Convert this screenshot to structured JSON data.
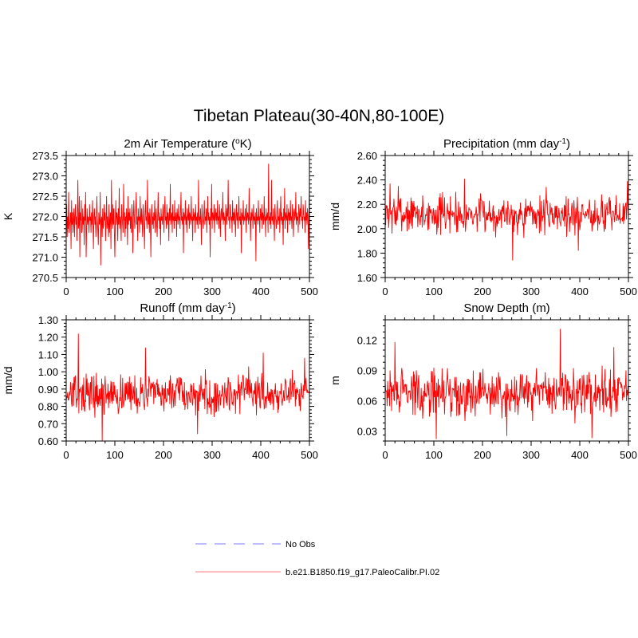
{
  "figure": {
    "title": "Tibetan Plateau(30-40N,80-100E)"
  },
  "legend": [
    {
      "label": "No Obs",
      "color": "#9999ff",
      "dash": true
    },
    {
      "label": "b.e21.B1850.f19_g17.PaleoCalibr.PI.02",
      "color": "#ff9999",
      "dash": false
    }
  ],
  "chart_data": [
    {
      "type": "line",
      "title": "2m Air Temperature (",
      "title_sup": "o",
      "title_tail": "K)",
      "ylabel": "K",
      "xlim": [
        0,
        500
      ],
      "ylim": [
        270.5,
        273.5
      ],
      "xticks": [
        0,
        100,
        200,
        300,
        400,
        500
      ],
      "yticks": [
        270.5,
        271.0,
        271.5,
        272.0,
        272.5,
        273.0,
        273.5
      ],
      "ytick_labels": [
        "270.5",
        "271.0",
        "271.5",
        "272.0",
        "272.5",
        "273.0",
        "273.5"
      ],
      "series_color": "#ff0000",
      "n_points": 501,
      "mean": 271.95,
      "amplitude": 0.35,
      "values": [
        271.9,
        272.3,
        271.5,
        272.0,
        271.7,
        272.6,
        271.6,
        271.8,
        271.9,
        272.1,
        271.2,
        272.4,
        271.8,
        272.1,
        271.6,
        271.9,
        272.2,
        271.5,
        272.0,
        272.3,
        271.8,
        272.0,
        271.4,
        272.0,
        272.9,
        271.7,
        271.8,
        272.5,
        271.0,
        272.1,
        271.9,
        272.4,
        271.6,
        271.7,
        272.2,
        271.8,
        272.0,
        271.3,
        272.3,
        271.9,
        272.6,
        271.0,
        271.7,
        272.2,
        271.8,
        272.0,
        271.9,
        271.6,
        272.3,
        271.9,
        272.0,
        271.6,
        272.1,
        271.8,
        272.4,
        271.9,
        271.2,
        272.0,
        272.2,
        271.8,
        272.0,
        271.5,
        271.9,
        272.5,
        272.0,
        271.7,
        271.3,
        272.1,
        271.8,
        271.9,
        272.6,
        270.8,
        271.9,
        272.0,
        271.5,
        272.2,
        271.7,
        271.8,
        272.3,
        271.9,
        272.1,
        271.4,
        271.9,
        272.5,
        271.7,
        272.0,
        271.8,
        271.5,
        272.3,
        271.6,
        271.9,
        272.1,
        271.2,
        272.9,
        271.9,
        271.7,
        272.3,
        271.8,
        272.2,
        271.6,
        271.0,
        271.9,
        272.4,
        271.8,
        272.1,
        272.0,
        271.4,
        272.2,
        271.8,
        272.7,
        271.7,
        272.0,
        271.9,
        271.4,
        272.3,
        272.0,
        271.8,
        271.6,
        272.8,
        271.9,
        272.1,
        271.5,
        272.0,
        271.7,
        272.2,
        272.0,
        271.3,
        272.5,
        271.8,
        272.1,
        271.9,
        272.2,
        271.7,
        272.0,
        271.6,
        272.3,
        272.1,
        271.1,
        271.9,
        272.4,
        272.0,
        271.7,
        271.9,
        272.1,
        272.6,
        271.8,
        272.0,
        271.4,
        272.2,
        271.9,
        272.0,
        271.6,
        272.5,
        271.9,
        271.8,
        272.2,
        271.9,
        271.5,
        272.3,
        272.0,
        271.8,
        271.2,
        272.1,
        272.4,
        271.9,
        272.0,
        271.7,
        272.9,
        271.9,
        271.8,
        272.1,
        271.6,
        272.2,
        271.9,
        271.0,
        272.0,
        272.3,
        271.8,
        272.0,
        271.7,
        272.1,
        271.9,
        272.4,
        271.6,
        272.0,
        272.2,
        271.8,
        271.5,
        272.0,
        272.6,
        271.9,
        272.1,
        271.7,
        272.0,
        271.3,
        272.2,
        271.9,
        272.0,
        271.8,
        272.3,
        272.0,
        271.6,
        272.1,
        272.5,
        271.9,
        272.0,
        271.7,
        272.3,
        271.8,
        272.1,
        272.0,
        271.4,
        272.2,
        271.9,
        272.8,
        271.8,
        272.0,
        272.1,
        271.6,
        272.3,
        271.9,
        272.0,
        271.7,
        272.4,
        271.9,
        271.9,
        272.1,
        271.5,
        272.2,
        272.0,
        271.8,
        272.3,
        271.9,
        272.0,
        271.7,
        272.1,
        272.6,
        271.9,
        272.0,
        271.8,
        272.2,
        271.1,
        272.1,
        272.0,
        271.9,
        272.4,
        271.8,
        272.0,
        271.6,
        272.2,
        272.0,
        271.9,
        272.3,
        271.7,
        272.1,
        272.0,
        271.8,
        272.5,
        271.9,
        272.0,
        271.4,
        272.2,
        271.9,
        272.0,
        272.1,
        271.6,
        272.3,
        271.9,
        272.0,
        271.8,
        272.1,
        271.7,
        272.9,
        271.9,
        272.0,
        271.8,
        272.2,
        271.9,
        271.3,
        272.3,
        272.0,
        271.9,
        271.7,
        272.1,
        272.4,
        271.8,
        272.0,
        271.9,
        272.2,
        271.6,
        272.0,
        272.5,
        271.9,
        272.1,
        271.8,
        272.0,
        271.0,
        272.2,
        271.9,
        272.8,
        271.7,
        272.1,
        272.0,
        271.9,
        272.3,
        271.6,
        272.0,
        272.2,
        271.9,
        272.1,
        271.8,
        272.4,
        271.9,
        272.0,
        271.7,
        272.3,
        272.0,
        271.5,
        272.1,
        272.2,
        271.9,
        272.0,
        272.6,
        271.8,
        272.1,
        271.9,
        272.0,
        271.4,
        272.3,
        272.1,
        271.8,
        272.2,
        272.0,
        272.9,
        271.9,
        272.0,
        271.7,
        272.3,
        272.1,
        271.9,
        272.0,
        271.6,
        272.4,
        271.9,
        272.1,
        271.8,
        272.2,
        272.0,
        271.5,
        272.0,
        272.3,
        271.9,
        272.1,
        271.7,
        272.0,
        272.5,
        271.9,
        272.0,
        271.8,
        272.2,
        271.1,
        272.1,
        272.0,
        271.9,
        272.4,
        271.8,
        272.0,
        271.9,
        272.2,
        272.0,
        271.6,
        272.3,
        271.9,
        272.1,
        272.0,
        271.8,
        272.7,
        271.9,
        272.0,
        271.4,
        272.1,
        271.9,
        272.2,
        272.0,
        271.7,
        272.3,
        271.9,
        272.0,
        271.8,
        272.1,
        270.9,
        272.2,
        271.9,
        272.0,
        271.8,
        272.4,
        271.9,
        272.0,
        271.6,
        272.2,
        272.0,
        271.9,
        272.3,
        271.7,
        272.1,
        272.0,
        271.8,
        272.5,
        271.9,
        272.0,
        271.5,
        272.2,
        271.9,
        272.0,
        272.1,
        271.6,
        273.3,
        271.9,
        272.0,
        271.8,
        272.1,
        271.7,
        272.9,
        271.9,
        272.0,
        271.8,
        272.2,
        271.9,
        271.4,
        272.3,
        272.0,
        271.9,
        271.7,
        272.1,
        272.4,
        271.8,
        272.0,
        271.9,
        272.2,
        271.6,
        272.0,
        272.5,
        271.9,
        272.1,
        271.8,
        272.0,
        271.3,
        272.2,
        271.9,
        272.7,
        271.7,
        272.1,
        272.0,
        271.9,
        272.3,
        271.6,
        272.0,
        272.2,
        271.9,
        272.1,
        271.8,
        272.4,
        271.9,
        272.0,
        271.7,
        272.3,
        272.0,
        271.5,
        272.1,
        272.2,
        271.9,
        272.0,
        272.6,
        271.8,
        272.1,
        271.9,
        272.0,
        271.6,
        272.3,
        272.1,
        271.8,
        272.2,
        272.0,
        272.5,
        271.9,
        272.0,
        271.7,
        272.3,
        272.1,
        271.9,
        272.0,
        271.6,
        272.4,
        271.9,
        272.1,
        271.8,
        272.2,
        272.0,
        271.2,
        272.0,
        272.8
      ]
    },
    {
      "type": "line",
      "title": "Precipitation (mm day",
      "title_sup": "-1",
      "title_tail": ")",
      "ylabel": "mm/d",
      "xlim": [
        0,
        500
      ],
      "ylim": [
        1.6,
        2.6
      ],
      "xticks": [
        0,
        100,
        200,
        300,
        400,
        500
      ],
      "yticks": [
        1.6,
        1.8,
        2.0,
        2.2,
        2.4,
        2.6
      ],
      "ytick_labels": [
        "1.60",
        "1.80",
        "2.00",
        "2.20",
        "2.40",
        "2.60"
      ],
      "series_color": "#ff0000",
      "n_points": 501,
      "mean": 2.12,
      "amplitude": 0.11,
      "seed": 7,
      "extremes": [
        [
          10,
          2.37
        ],
        [
          27,
          2.35
        ],
        [
          163,
          2.41
        ],
        [
          262,
          1.74
        ],
        [
          397,
          1.82
        ],
        [
          498,
          2.39
        ]
      ]
    },
    {
      "type": "line",
      "title": "Runoff (mm day",
      "title_sup": "-1",
      "title_tail": ")",
      "ylabel": "mm/d",
      "xlim": [
        0,
        500
      ],
      "ylim": [
        0.6,
        1.3
      ],
      "xticks": [
        0,
        100,
        200,
        300,
        400,
        500
      ],
      "yticks": [
        0.6,
        0.7,
        0.8,
        0.9,
        1.0,
        1.1,
        1.2,
        1.3
      ],
      "ytick_labels": [
        "0.60",
        "0.70",
        "0.80",
        "0.90",
        "1.00",
        "1.10",
        "1.20",
        "1.30"
      ],
      "series_color": "#ff0000",
      "n_points": 501,
      "mean": 0.87,
      "amplitude": 0.08,
      "seed": 13,
      "extremes": [
        [
          25,
          1.22
        ],
        [
          74,
          0.6
        ],
        [
          163,
          1.14
        ],
        [
          270,
          0.64
        ],
        [
          405,
          1.11
        ],
        [
          490,
          1.08
        ]
      ]
    },
    {
      "type": "line",
      "title": "Snow Depth (m)",
      "title_sup": "",
      "title_tail": "",
      "ylabel": "m",
      "xlim": [
        0,
        500
      ],
      "ylim": [
        0.02,
        0.14
      ],
      "xticks": [
        0,
        100,
        200,
        300,
        400,
        500
      ],
      "yticks": [
        0.03,
        0.06,
        0.09,
        0.12
      ],
      "ytick_labels": [
        "0.03",
        "0.06",
        "0.09",
        "0.12"
      ],
      "series_color": "#ff0000",
      "n_points": 501,
      "mean": 0.068,
      "amplitude": 0.016,
      "seed": 29,
      "extremes": [
        [
          20,
          0.118
        ],
        [
          105,
          0.022
        ],
        [
          360,
          0.131
        ],
        [
          250,
          0.025
        ],
        [
          425,
          0.023
        ],
        [
          470,
          0.113
        ]
      ]
    }
  ]
}
